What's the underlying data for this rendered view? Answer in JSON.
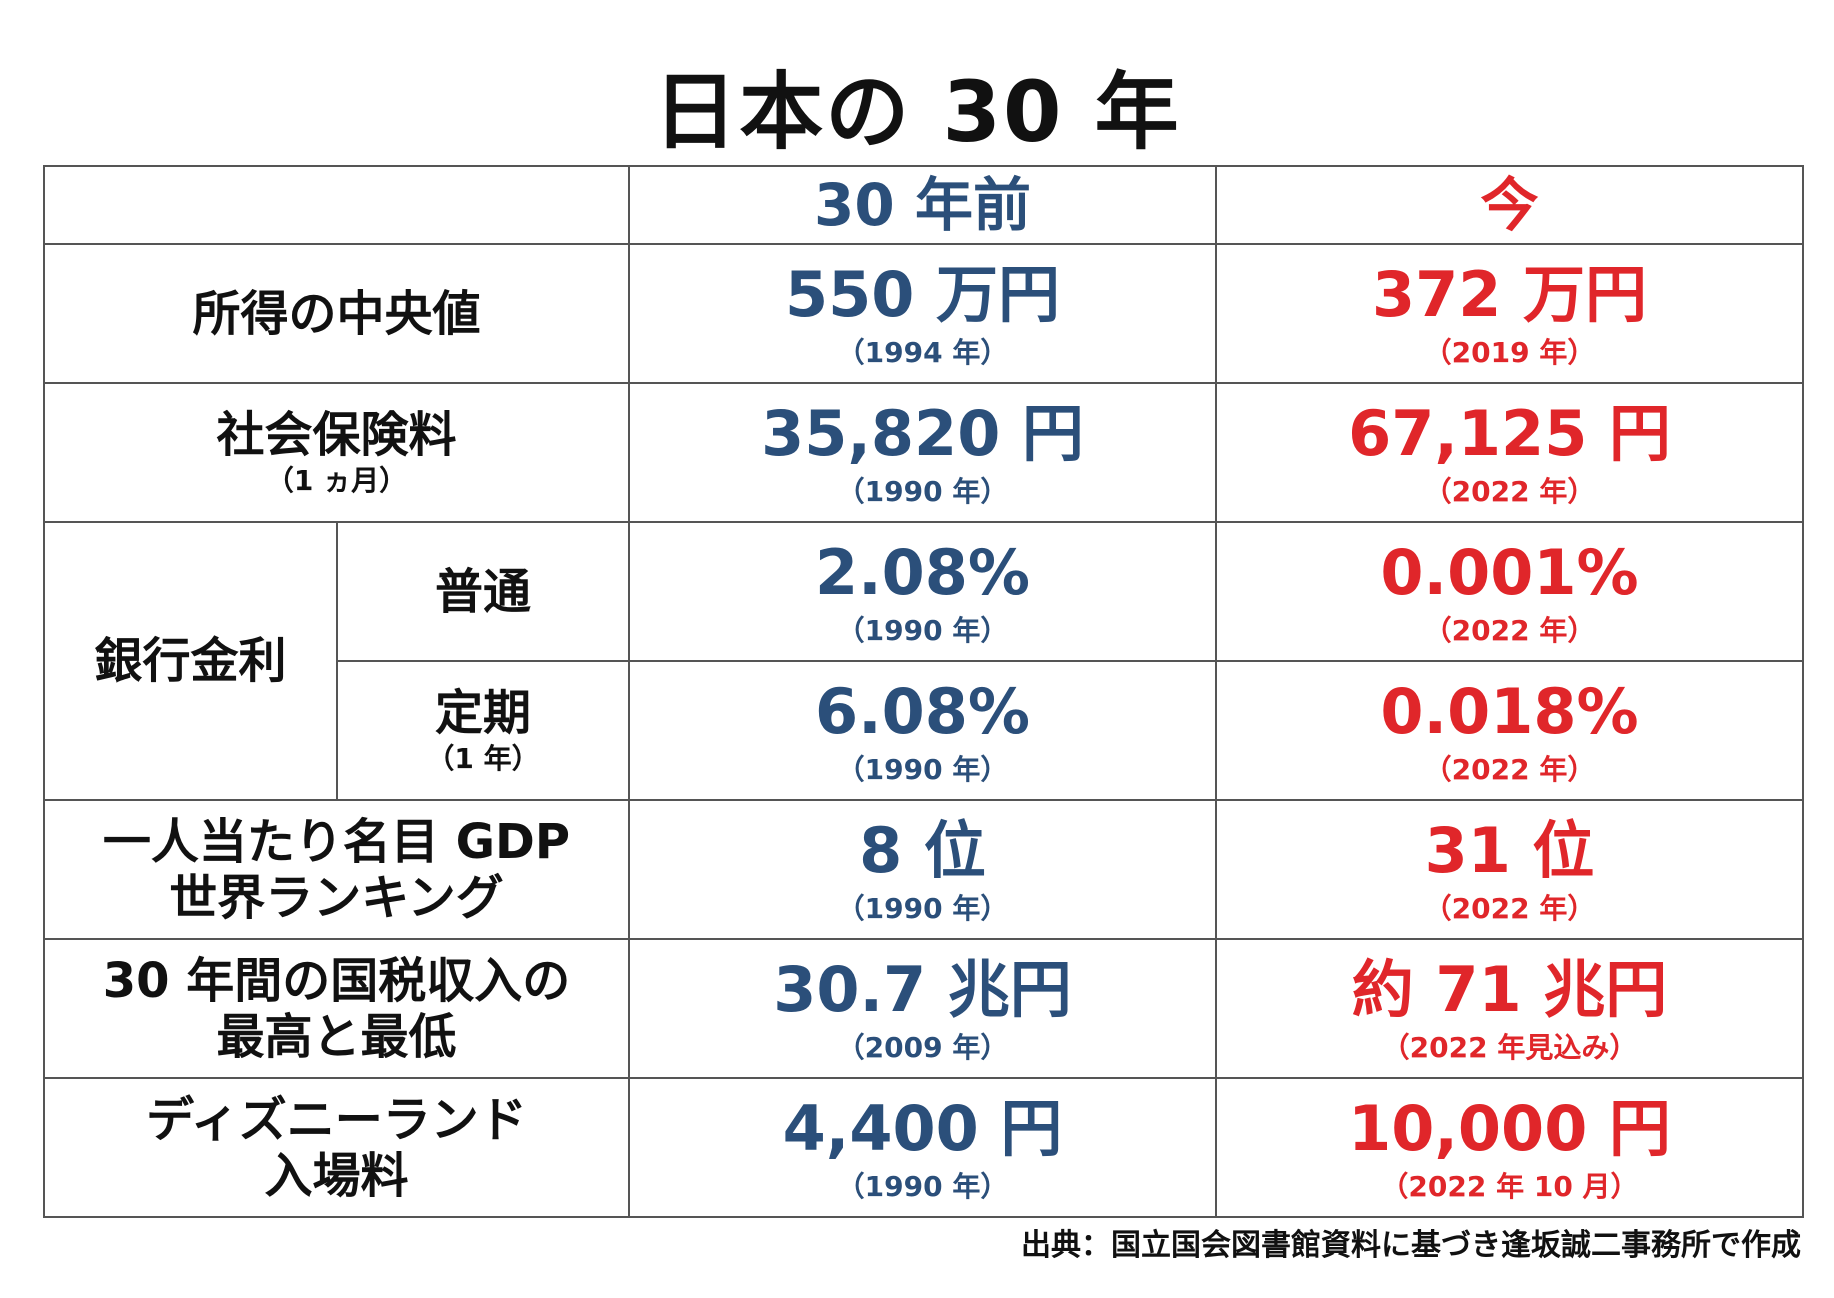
{
  "title": "日本の 30 年",
  "header": {
    "past": "30 年前",
    "now": "今"
  },
  "colors": {
    "past": "#2b4f7a",
    "now": "#e0262a",
    "text": "#111111",
    "border": "#555555"
  },
  "rows": {
    "income": {
      "label": "所得の中央値",
      "past_value": "550 万円",
      "past_year": "（1994 年）",
      "now_value": "372 万円",
      "now_year": "（2019 年）"
    },
    "social_insurance": {
      "label": "社会保険料",
      "sublabel": "（1 ヵ月）",
      "past_value": "35,820 円",
      "past_year": "（1990 年）",
      "now_value": "67,125 円",
      "now_year": "（2022 年）"
    },
    "bank_rate": {
      "label": "銀行金利",
      "ordinary": {
        "label": "普通",
        "past_value": "2.08%",
        "past_year": "（1990 年）",
        "now_value": "0.001%",
        "now_year": "（2022 年）"
      },
      "fixed": {
        "label": "定期",
        "sublabel": "（1 年）",
        "past_value": "6.08%",
        "past_year": "（1990 年）",
        "now_value": "0.018%",
        "now_year": "（2022 年）"
      }
    },
    "gdp": {
      "label_line1": "一人当たり名目 GDP",
      "label_line2": "世界ランキング",
      "past_value": "8 位",
      "past_year": "（1990 年）",
      "now_value": "31 位",
      "now_year": "（2022 年）"
    },
    "tax": {
      "label_line1": "30 年間の国税収入の",
      "label_line2": "最高と最低",
      "past_value": "30.7 兆円",
      "past_year": "（2009 年）",
      "now_value": "約 71 兆円",
      "now_year": "（2022 年見込み）"
    },
    "disney": {
      "label_line1": "ディズニーランド",
      "label_line2": "入場料",
      "past_value": "4,400 円",
      "past_year": "（1990 年）",
      "now_value": "10,000 円",
      "now_year": "（2022 年 10 月）"
    }
  },
  "source": "出典：国立国会図書館資料に基づき逢坂誠二事務所で作成"
}
